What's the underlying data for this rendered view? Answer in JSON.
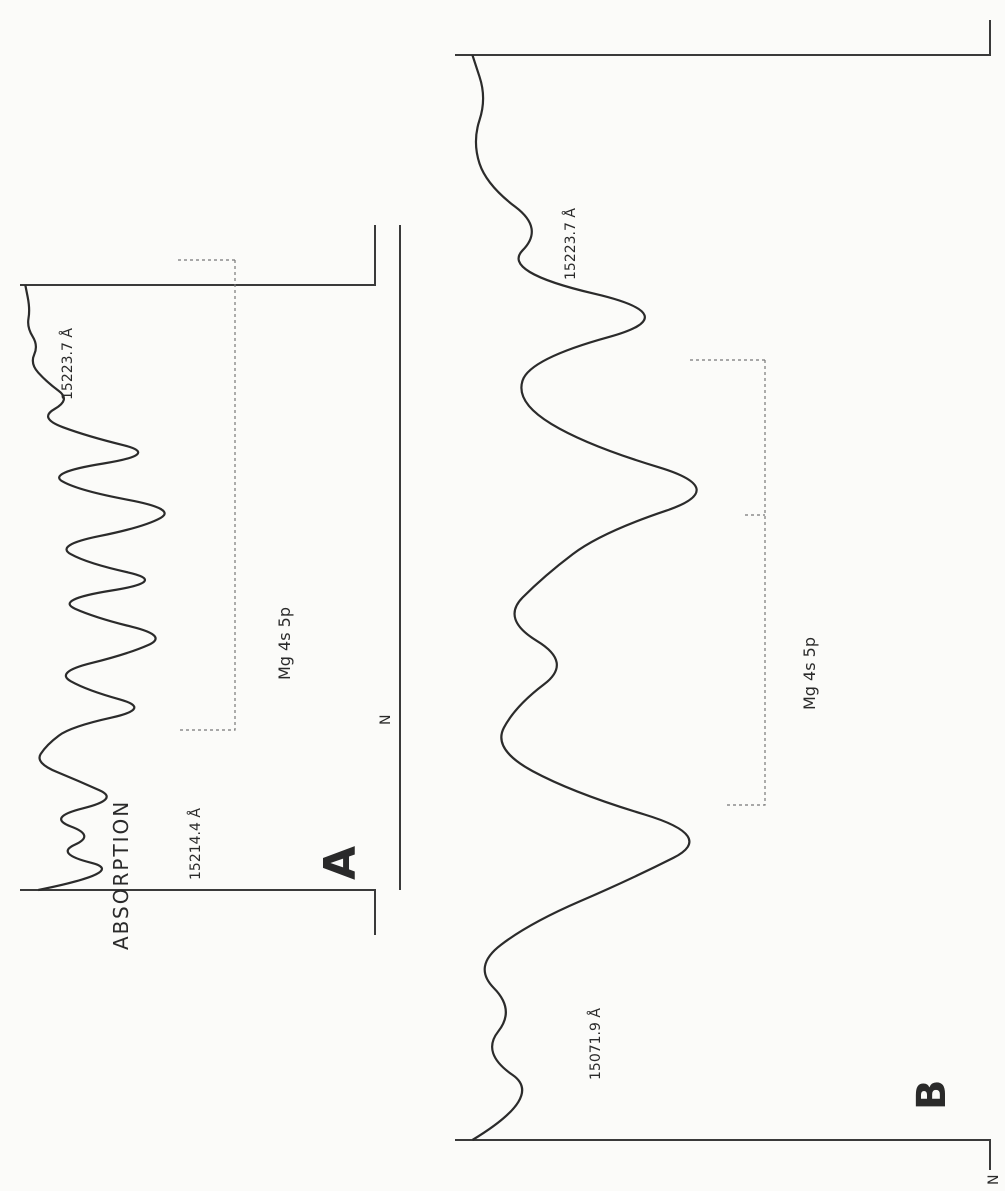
{
  "panels": {
    "A": {
      "panel_label": "A",
      "ylabel": "ABSORPTION",
      "line_left": "15214.4 Å",
      "line_right": "15223.7 Å",
      "band": "Mg 4s 5p",
      "corner_mark": "N"
    },
    "B": {
      "panel_label": "B",
      "line_left": "15071.9 Å",
      "line_right": "15223.7 Å",
      "band": "Mg 4s 5p",
      "corner_mark": "N"
    }
  },
  "chart_data": [
    {
      "type": "line",
      "panel": "A",
      "rotated": "90° counter-clockwise",
      "ylabel": "ABSORPTION",
      "x": [
        0,
        0.03,
        0.06,
        0.09,
        0.12,
        0.15,
        0.18,
        0.21,
        0.24,
        0.27,
        0.3,
        0.33,
        0.36,
        0.39,
        0.42,
        0.45,
        0.48,
        0.51,
        0.54,
        0.57,
        0.6,
        0.63,
        0.66,
        0.69,
        0.72,
        0.75,
        0.78,
        0.81,
        0.84,
        0.87,
        0.9,
        0.93,
        0.96,
        1.0
      ],
      "y": [
        0.1,
        0.65,
        0.2,
        0.45,
        0.15,
        0.6,
        0.35,
        0.08,
        0.15,
        0.3,
        0.8,
        0.4,
        0.2,
        0.65,
        0.9,
        0.45,
        0.2,
        0.9,
        0.4,
        0.2,
        0.75,
        0.95,
        0.35,
        0.15,
        0.85,
        0.4,
        0.1,
        0.3,
        0.15,
        0.05,
        0.1,
        0.03,
        0.05,
        0.02
      ]
    },
    {
      "type": "line",
      "panel": "B",
      "rotated": "90° counter-clockwise",
      "x": [
        0,
        0.04,
        0.08,
        0.12,
        0.16,
        0.2,
        0.24,
        0.28,
        0.32,
        0.36,
        0.4,
        0.44,
        0.48,
        0.52,
        0.56,
        0.6,
        0.64,
        0.68,
        0.72,
        0.76,
        0.8,
        0.84,
        0.88,
        0.92,
        0.96,
        1.0
      ],
      "y": [
        0.05,
        0.3,
        0.08,
        0.2,
        0.05,
        0.25,
        0.6,
        0.9,
        0.4,
        0.12,
        0.2,
        0.4,
        0.15,
        0.3,
        0.5,
        0.95,
        0.45,
        0.2,
        0.25,
        0.8,
        0.15,
        0.3,
        0.1,
        0.05,
        0.1,
        0.05
      ]
    }
  ]
}
